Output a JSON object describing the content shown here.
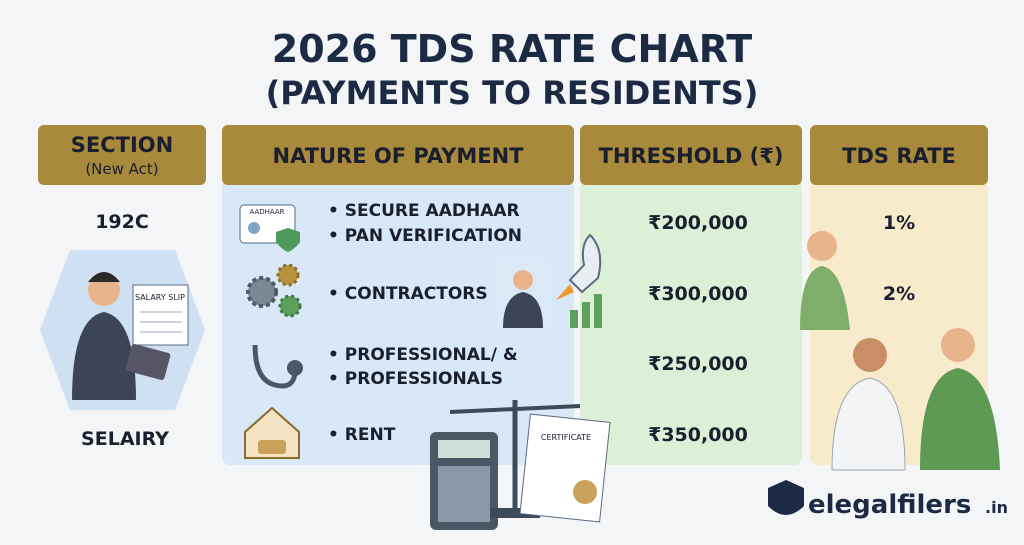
{
  "header": {
    "title": "2026 TDS RATE CHART",
    "subtitle": "(PAYMENTS TO RESIDENTS)"
  },
  "table": {
    "columns": {
      "section": "SECTION",
      "section_note": "(New Act)",
      "nature": "NATURE OF PAYMENT",
      "threshold": "THRESHOLD (₹)",
      "rate": "TDS RATE"
    },
    "section_labels": [
      "192C",
      "SELAIRY"
    ],
    "nature_rows": [
      [
        "• SECURE AADHAAR",
        "• PAN VERIFICATION"
      ],
      [
        "• CONTRACTORS"
      ],
      [
        "• PROFESSIONAL/ &",
        "• PROFESSIONALS"
      ],
      [
        "• RENT"
      ]
    ],
    "thresholds": [
      "₹200,000",
      "₹300,000",
      "₹250,000",
      "₹350,000"
    ],
    "rates": [
      "1%",
      "2%"
    ]
  },
  "illustrations": {
    "aadhaar_card": "AADHAAR",
    "salary_slip": "SALARY SLIP",
    "certificate": "CERTIFICATE"
  },
  "logo": {
    "name": "elegalfilers",
    "suffix": ".in"
  }
}
